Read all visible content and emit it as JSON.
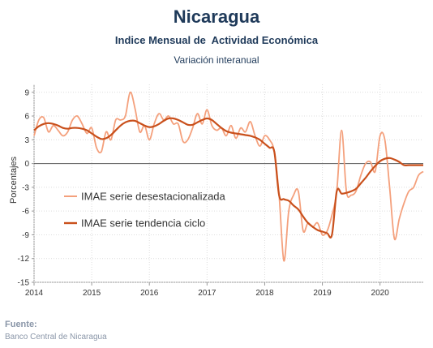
{
  "title": "Nicaragua",
  "subtitle": "Indice Mensual de  Actividad Económica",
  "subtitle2": "Variación interanual",
  "source_label": "Fuente:",
  "source_text": "Banco Central de Nicaragua",
  "chart_data": {
    "type": "line",
    "ylabel": "Porcentajes",
    "ylim": [
      -15,
      10
    ],
    "yticks": [
      9,
      6,
      3,
      0,
      -3,
      -6,
      -9,
      -12,
      -15
    ],
    "xlim": [
      2014,
      2020.75
    ],
    "xticks": [
      "2014",
      "2015",
      "2016",
      "2017",
      "2018",
      "2019",
      "2020"
    ],
    "legend_position": "left-center",
    "grid": true,
    "series": [
      {
        "name": "IMAE serie desestacionalizada",
        "color": "#f4a07c",
        "x": [
          2014.0,
          2014.0833,
          2014.1667,
          2014.25,
          2014.3333,
          2014.4167,
          2014.5,
          2014.5833,
          2014.6667,
          2014.75,
          2014.8333,
          2014.9167,
          2015.0,
          2015.0833,
          2015.1667,
          2015.25,
          2015.3333,
          2015.4167,
          2015.5,
          2015.5833,
          2015.6667,
          2015.75,
          2015.8333,
          2015.9167,
          2016.0,
          2016.0833,
          2016.1667,
          2016.25,
          2016.3333,
          2016.4167,
          2016.5,
          2016.5833,
          2016.6667,
          2016.75,
          2016.8333,
          2016.9167,
          2017.0,
          2017.0833,
          2017.1667,
          2017.25,
          2017.3333,
          2017.4167,
          2017.5,
          2017.5833,
          2017.6667,
          2017.75,
          2017.8333,
          2017.9167,
          2018.0,
          2018.0833,
          2018.1667,
          2018.25,
          2018.3333,
          2018.4167,
          2018.5,
          2018.5833,
          2018.6667,
          2018.75,
          2018.8333,
          2018.9167,
          2019.0,
          2019.0833,
          2019.1667,
          2019.25,
          2019.3333,
          2019.4167,
          2019.5,
          2019.5833,
          2019.6667,
          2019.75,
          2019.8333,
          2019.9167,
          2020.0,
          2020.0833,
          2020.1667,
          2020.25,
          2020.3333,
          2020.4167,
          2020.5,
          2020.5833,
          2020.6667,
          2020.75
        ],
        "values": [
          3.5,
          5.5,
          5.8,
          4.0,
          4.8,
          4.2,
          3.5,
          4.0,
          5.5,
          6.0,
          5.0,
          3.8,
          4.5,
          2.0,
          1.5,
          4.0,
          3.0,
          5.5,
          5.5,
          6.0,
          9.0,
          7.0,
          4.0,
          4.8,
          3.0,
          5.0,
          6.3,
          5.5,
          6.0,
          5.0,
          5.0,
          2.8,
          3.0,
          4.5,
          6.3,
          5.0,
          6.8,
          4.8,
          4.2,
          4.5,
          3.5,
          4.8,
          3.2,
          4.5,
          4.0,
          5.3,
          3.5,
          2.2,
          3.5,
          3.0,
          1.5,
          -4.0,
          -12.3,
          -6.0,
          -4.0,
          -3.5,
          -8.5,
          -7.5,
          -8.0,
          -7.5,
          -9.0,
          -8.5,
          -6.5,
          -3.5,
          4.2,
          -3.5,
          -4.0,
          -3.5,
          -1.5,
          0.0,
          0.2,
          -1.0,
          3.5,
          3.0,
          -3.0,
          -9.5,
          -7.0,
          -5.0,
          -3.5,
          -3.0,
          -1.5,
          -1.0
        ]
      },
      {
        "name": "IMAE serie  tendencia ciclo",
        "color": "#c9501c",
        "x": [
          2014.0,
          2014.0833,
          2014.1667,
          2014.25,
          2014.3333,
          2014.4167,
          2014.5,
          2014.5833,
          2014.6667,
          2014.75,
          2014.8333,
          2014.9167,
          2015.0,
          2015.0833,
          2015.1667,
          2015.25,
          2015.3333,
          2015.4167,
          2015.5,
          2015.5833,
          2015.6667,
          2015.75,
          2015.8333,
          2015.9167,
          2016.0,
          2016.0833,
          2016.1667,
          2016.25,
          2016.3333,
          2016.4167,
          2016.5,
          2016.5833,
          2016.6667,
          2016.75,
          2016.8333,
          2016.9167,
          2017.0,
          2017.0833,
          2017.1667,
          2017.25,
          2017.3333,
          2017.4167,
          2017.5,
          2017.5833,
          2017.6667,
          2017.75,
          2017.8333,
          2017.9167,
          2018.0,
          2018.0833,
          2018.1667,
          2018.25,
          2018.3333,
          2018.4167,
          2018.5,
          2018.5833,
          2018.6667,
          2018.75,
          2018.8333,
          2018.9167,
          2019.0,
          2019.0833,
          2019.1667,
          2019.25,
          2019.3333,
          2019.4167,
          2019.5,
          2019.5833,
          2019.6667,
          2019.75,
          2019.8333,
          2019.9167,
          2020.0,
          2020.0833,
          2020.1667,
          2020.25,
          2020.3333,
          2020.4167,
          2020.5,
          2020.5833,
          2020.6667,
          2020.75
        ],
        "values": [
          4.2,
          4.7,
          5.0,
          5.1,
          5.0,
          4.8,
          4.5,
          4.4,
          4.5,
          4.5,
          4.4,
          4.2,
          3.8,
          3.4,
          3.1,
          3.2,
          3.6,
          4.2,
          4.8,
          5.2,
          5.4,
          5.4,
          5.1,
          4.8,
          4.6,
          4.7,
          5.0,
          5.4,
          5.7,
          5.7,
          5.5,
          5.2,
          4.9,
          4.9,
          5.2,
          5.5,
          5.7,
          5.5,
          5.0,
          4.5,
          4.1,
          3.9,
          3.8,
          3.7,
          3.6,
          3.5,
          3.3,
          3.0,
          2.5,
          2.0,
          1.5,
          -4.0,
          -4.5,
          -4.7,
          -5.3,
          -5.8,
          -6.7,
          -7.5,
          -8.0,
          -8.4,
          -8.6,
          -8.8,
          -9.0,
          -3.5,
          -3.8,
          -3.7,
          -3.5,
          -3.2,
          -2.5,
          -1.8,
          -1.0,
          -0.3,
          0.3,
          0.6,
          0.7,
          0.5,
          0.2,
          -0.2,
          -0.2,
          -0.2,
          -0.2,
          -0.2
        ]
      }
    ]
  }
}
